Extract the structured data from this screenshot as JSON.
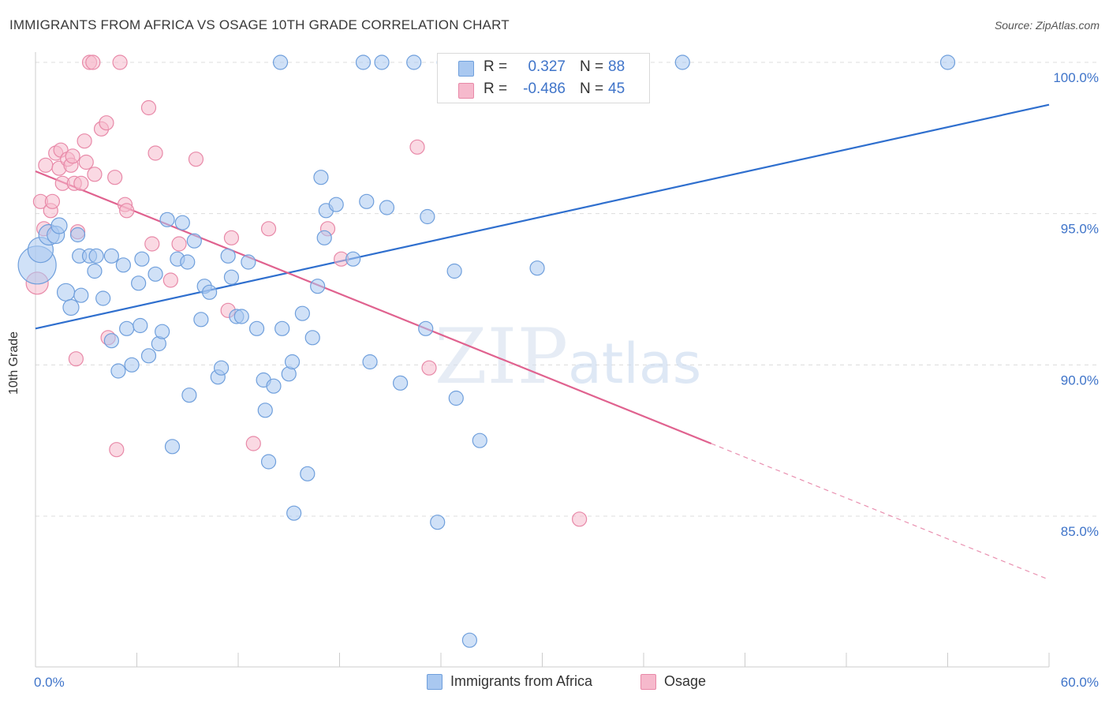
{
  "header": {
    "title": "IMMIGRANTS FROM AFRICA VS OSAGE 10TH GRADE CORRELATION CHART",
    "source": "Source: ZipAtlas.com"
  },
  "watermark": "ZIPatlas",
  "legend": {
    "rows": [
      {
        "r_label": "R =",
        "r_value": "0.327",
        "n_label": "N =",
        "n_value": "88"
      },
      {
        "r_label": "R =",
        "r_value": "-0.486",
        "n_label": "N =",
        "n_value": "45"
      }
    ]
  },
  "colors": {
    "blue_fill": "#a9c8f0",
    "blue_stroke": "#6f9fdc",
    "blue_line": "#2f6fce",
    "pink_fill": "#f6b9cc",
    "pink_stroke": "#e889a8",
    "pink_line": "#e0628f",
    "tick_text": "#3f74c9"
  },
  "chart_data": {
    "type": "scatter",
    "title": "IMMIGRANTS FROM AFRICA VS OSAGE 10TH GRADE CORRELATION CHART",
    "xlabel": "",
    "ylabel": "10th Grade",
    "xlim": [
      0,
      60
    ],
    "ylim": [
      80,
      101
    ],
    "x_tick_labels": [
      "0.0%",
      "60.0%"
    ],
    "y_ticks": [
      85,
      90,
      95,
      100
    ],
    "y_tick_labels": [
      "85.0%",
      "90.0%",
      "95.0%",
      "100.0%"
    ],
    "grid": true,
    "legend_position": "top-center",
    "series": [
      {
        "name": "Immigrants from Africa",
        "color": "#a9c8f0",
        "r": 0.327,
        "n": 88,
        "trend": {
          "x": [
            0,
            60
          ],
          "y": [
            91.2,
            98.6
          ],
          "style": "solid"
        },
        "points": [
          [
            0.1,
            93.3,
            24
          ],
          [
            0.3,
            93.8,
            16
          ],
          [
            0.8,
            94.3,
            13
          ],
          [
            1.2,
            94.3,
            11
          ],
          [
            1.4,
            94.6,
            10
          ],
          [
            1.8,
            92.4,
            11
          ],
          [
            2.1,
            91.9,
            10
          ],
          [
            2.5,
            94.3,
            9
          ],
          [
            2.6,
            93.6,
            9
          ],
          [
            2.7,
            92.3,
            9
          ],
          [
            3.2,
            93.6,
            9
          ],
          [
            3.5,
            93.1,
            9
          ],
          [
            3.6,
            93.6,
            9
          ],
          [
            4.0,
            92.2,
            9
          ],
          [
            4.5,
            93.6,
            9
          ],
          [
            4.5,
            90.8,
            9
          ],
          [
            4.9,
            89.8,
            9
          ],
          [
            5.2,
            93.3,
            9
          ],
          [
            5.4,
            91.2,
            9
          ],
          [
            5.7,
            90.0,
            9
          ],
          [
            6.1,
            92.7,
            9
          ],
          [
            6.2,
            91.3,
            9
          ],
          [
            6.3,
            93.5,
            9
          ],
          [
            6.7,
            90.3,
            9
          ],
          [
            7.1,
            93.0,
            9
          ],
          [
            7.3,
            90.7,
            9
          ],
          [
            7.5,
            91.1,
            9
          ],
          [
            7.8,
            94.8,
            9
          ],
          [
            8.1,
            87.3,
            9
          ],
          [
            8.4,
            93.5,
            9
          ],
          [
            8.7,
            94.7,
            9
          ],
          [
            9.0,
            93.4,
            9
          ],
          [
            9.1,
            89.0,
            9
          ],
          [
            9.4,
            94.1,
            9
          ],
          [
            9.8,
            91.5,
            9
          ],
          [
            10.0,
            92.6,
            9
          ],
          [
            10.3,
            92.4,
            9
          ],
          [
            10.8,
            89.6,
            9
          ],
          [
            11.0,
            89.9,
            9
          ],
          [
            11.4,
            93.6,
            9
          ],
          [
            11.6,
            92.9,
            9
          ],
          [
            11.9,
            91.6,
            9
          ],
          [
            12.2,
            91.6,
            9
          ],
          [
            12.6,
            93.4,
            9
          ],
          [
            13.1,
            91.2,
            9
          ],
          [
            13.5,
            89.5,
            9
          ],
          [
            13.6,
            88.5,
            9
          ],
          [
            13.8,
            86.8,
            9
          ],
          [
            14.1,
            89.3,
            9
          ],
          [
            14.5,
            100.0,
            9
          ],
          [
            14.6,
            91.2,
            9
          ],
          [
            15.0,
            89.7,
            9
          ],
          [
            15.2,
            90.1,
            9
          ],
          [
            15.3,
            85.1,
            9
          ],
          [
            15.8,
            91.7,
            9
          ],
          [
            16.1,
            86.4,
            9
          ],
          [
            16.4,
            90.9,
            9
          ],
          [
            16.7,
            92.6,
            9
          ],
          [
            16.9,
            96.2,
            9
          ],
          [
            17.1,
            94.2,
            9
          ],
          [
            17.2,
            95.1,
            9
          ],
          [
            17.8,
            95.3,
            9
          ],
          [
            18.8,
            93.5,
            9
          ],
          [
            19.4,
            100.0,
            9
          ],
          [
            19.6,
            95.4,
            9
          ],
          [
            19.8,
            90.1,
            9
          ],
          [
            20.5,
            100.0,
            9
          ],
          [
            20.8,
            95.2,
            9
          ],
          [
            21.6,
            89.4,
            9
          ],
          [
            22.4,
            100.0,
            9
          ],
          [
            23.1,
            91.2,
            9
          ],
          [
            23.2,
            94.9,
            9
          ],
          [
            23.8,
            84.8,
            9
          ],
          [
            24.2,
            100.0,
            9
          ],
          [
            24.8,
            93.1,
            9
          ],
          [
            24.9,
            88.9,
            9
          ],
          [
            25.6,
            100.0,
            9
          ],
          [
            25.7,
            80.9,
            9
          ],
          [
            26.0,
            100.0,
            9
          ],
          [
            26.3,
            87.5,
            9
          ],
          [
            29.7,
            93.2,
            9
          ],
          [
            31.0,
            100.0,
            9
          ],
          [
            31.8,
            100.0,
            9
          ],
          [
            32.9,
            100.0,
            9
          ],
          [
            33.3,
            100.0,
            9
          ],
          [
            35.0,
            100.0,
            9
          ],
          [
            38.3,
            100.0,
            9
          ],
          [
            54.0,
            100.0,
            9
          ]
        ]
      },
      {
        "name": "Osage",
        "color": "#f6b9cc",
        "r": -0.486,
        "n": 45,
        "trend": {
          "x": [
            0,
            40
          ],
          "y": [
            96.4,
            87.4
          ],
          "style": "solid",
          "extension_x": [
            40,
            60
          ],
          "extension_y": [
            87.4,
            82.9
          ],
          "extension_style": "dashed"
        },
        "points": [
          [
            0.1,
            92.7,
            14
          ],
          [
            0.3,
            95.4,
            9
          ],
          [
            0.5,
            94.5,
            9
          ],
          [
            0.6,
            96.6,
            9
          ],
          [
            0.9,
            95.1,
            9
          ],
          [
            1.0,
            95.4,
            9
          ],
          [
            1.2,
            97.0,
            9
          ],
          [
            1.4,
            96.5,
            9
          ],
          [
            1.5,
            97.1,
            9
          ],
          [
            1.6,
            96.0,
            9
          ],
          [
            1.9,
            96.8,
            9
          ],
          [
            2.1,
            96.6,
            9
          ],
          [
            2.2,
            96.9,
            9
          ],
          [
            2.3,
            96.0,
            9
          ],
          [
            2.4,
            90.2,
            9
          ],
          [
            2.5,
            94.4,
            9
          ],
          [
            2.7,
            96.0,
            9
          ],
          [
            2.9,
            97.4,
            9
          ],
          [
            3.0,
            96.7,
            9
          ],
          [
            3.2,
            100.0,
            9
          ],
          [
            3.4,
            100.0,
            9
          ],
          [
            3.5,
            96.3,
            9
          ],
          [
            3.9,
            97.8,
            9
          ],
          [
            4.2,
            98.0,
            9
          ],
          [
            4.3,
            90.9,
            9
          ],
          [
            4.7,
            96.2,
            9
          ],
          [
            4.8,
            87.2,
            9
          ],
          [
            5.0,
            100.0,
            9
          ],
          [
            5.3,
            95.3,
            9
          ],
          [
            5.4,
            95.1,
            9
          ],
          [
            6.7,
            98.5,
            9
          ],
          [
            6.9,
            94.0,
            9
          ],
          [
            7.1,
            97.0,
            9
          ],
          [
            8.0,
            92.8,
            9
          ],
          [
            8.5,
            94.0,
            9
          ],
          [
            9.5,
            96.8,
            9
          ],
          [
            11.4,
            91.8,
            9
          ],
          [
            11.6,
            94.2,
            9
          ],
          [
            12.9,
            87.4,
            9
          ],
          [
            13.8,
            94.5,
            9
          ],
          [
            17.3,
            94.5,
            9
          ],
          [
            18.1,
            93.5,
            9
          ],
          [
            22.6,
            97.2,
            9
          ],
          [
            23.3,
            89.9,
            9
          ],
          [
            32.2,
            84.9,
            9
          ]
        ]
      }
    ]
  }
}
